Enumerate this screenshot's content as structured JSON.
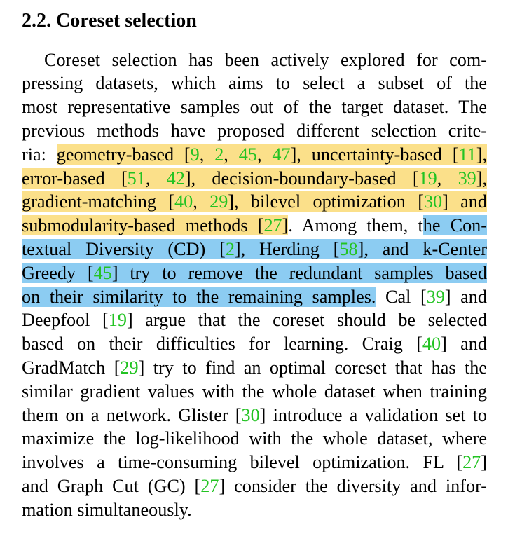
{
  "section_heading": "2.2. Coreset selection",
  "paragraph_lines": [
    [
      "Coreset selection has been actively explored for com-"
    ],
    [
      "pressing datasets, which aims to select a subset of the"
    ],
    [
      "most representative samples out of the target dataset. The"
    ],
    [
      "previous methods have proposed different selection crite-"
    ],
    [
      "ria: ",
      {
        "hl": "y",
        "parts": [
          "geometry-based [",
          {
            "r": "9"
          },
          ", ",
          {
            "r": "2"
          },
          ", ",
          {
            "r": "45"
          },
          ", ",
          {
            "r": "47"
          },
          "], uncertainty-based [",
          {
            "r": "11"
          },
          "],"
        ]
      }
    ],
    [
      {
        "hl": "y",
        "parts": [
          "error-based [",
          {
            "r": "51"
          },
          ", ",
          {
            "r": "42"
          },
          "], decision-boundary-based [",
          {
            "r": "19"
          },
          ", ",
          {
            "r": "39"
          },
          "],"
        ]
      }
    ],
    [
      {
        "hl": "y",
        "parts": [
          "gradient-matching [",
          {
            "r": "40"
          },
          ", ",
          {
            "r": "29"
          },
          "], bilevel optimization [",
          {
            "r": "30"
          },
          "] and"
        ]
      }
    ],
    [
      {
        "hl": "y",
        "parts": [
          "submodularity-based methods [",
          {
            "r": "27"
          },
          "]"
        ]
      },
      ". Among them, t",
      {
        "hl": "b",
        "parts": [
          "he Con-"
        ]
      }
    ],
    [
      {
        "hl": "b",
        "parts": [
          "textual Diversity (CD) [",
          {
            "r": "2"
          },
          "], Herding [",
          {
            "r": "58"
          },
          "], and k-Center"
        ]
      }
    ],
    [
      {
        "hl": "b",
        "parts": [
          "Greedy [",
          {
            "r": "45"
          },
          "] try to remove the redundant samples based"
        ]
      }
    ],
    [
      {
        "hl": "b",
        "parts": [
          "on their similarity to the remaining samples."
        ]
      },
      " Cal [",
      {
        "r": "39"
      },
      "] and"
    ],
    [
      "Deepfool [",
      {
        "r": "19"
      },
      "] argue that the coreset should be selected"
    ],
    [
      "based on their difficulties for learning. Craig [",
      {
        "r": "40"
      },
      "] and"
    ],
    [
      "GradMatch [",
      {
        "r": "29"
      },
      "] try to find an optimal coreset that has the"
    ],
    [
      "similar gradient values with the whole dataset when training"
    ],
    [
      "them on a network. Glister [",
      {
        "r": "30"
      },
      "] introduce a validation set to"
    ],
    [
      "maximize the log-likelihood with the whole dataset, where"
    ],
    [
      "involves a time-consuming bilevel optimization. FL [",
      {
        "r": "27"
      },
      "]"
    ],
    [
      "and Graph Cut (GC) [",
      {
        "r": "27"
      },
      "] consider the diversity and infor-"
    ],
    [
      "mation simultaneously."
    ]
  ],
  "colors": {
    "citation": "#22c322",
    "highlight_yellow": "#fbe08a",
    "highlight_blue": "#8cccf2"
  }
}
